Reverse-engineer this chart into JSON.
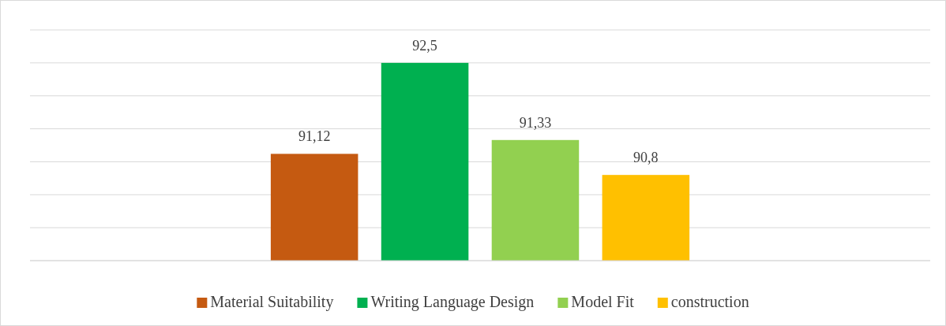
{
  "chart_data": {
    "type": "bar",
    "categories": [
      null
    ],
    "series": [
      {
        "name": "Material Suitability",
        "color": "#c55a11",
        "values": [
          91.12
        ],
        "value_labels": [
          "91,12"
        ]
      },
      {
        "name": "Writing Language Design",
        "color": "#00b050",
        "values": [
          92.5
        ],
        "value_labels": [
          "92,5"
        ]
      },
      {
        "name": "Model Fit",
        "color": "#92d050",
        "values": [
          91.33
        ],
        "value_labels": [
          "91,33"
        ]
      },
      {
        "name": "construction",
        "color": "#ffc000",
        "values": [
          90.8
        ],
        "value_labels": [
          "90,8"
        ]
      }
    ],
    "ylim": [
      89.5,
      93
    ],
    "yticks": [
      {
        "value": 89.5,
        "label": null
      },
      {
        "value": 90,
        "label": null
      },
      {
        "value": 90.5,
        "label": null
      },
      {
        "value": 91,
        "label": null
      },
      {
        "value": 91.5,
        "label": null
      },
      {
        "value": 92,
        "label": null
      },
      {
        "value": 92.5,
        "label": null
      },
      {
        "value": 93,
        "label": null
      }
    ],
    "grid": "y",
    "tick_labels": false,
    "legend": "bottom"
  }
}
